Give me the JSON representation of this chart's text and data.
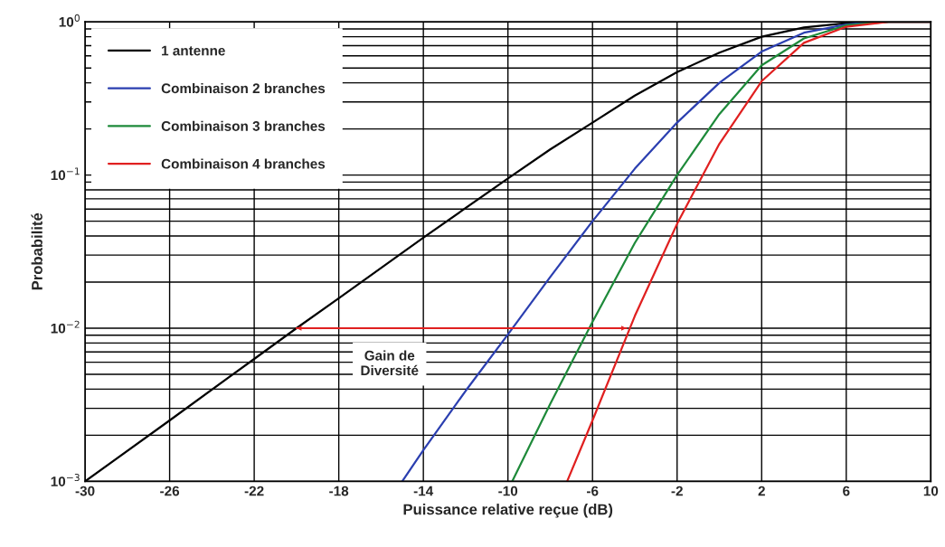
{
  "chart_data": {
    "type": "line",
    "xlabel": "Puissance relative reçue (dB)",
    "ylabel": "Probabilité",
    "log": "y",
    "grid": true,
    "legend": "top left",
    "line_style": "solid",
    "xlim": [
      -30,
      10
    ],
    "xticks": [
      -30,
      -26,
      -22,
      -18,
      -14,
      -10,
      -6,
      -2,
      2,
      6,
      10
    ],
    "ylim": [
      0.001,
      1
    ],
    "yticks": [
      {
        "value": 0.001,
        "label": "10$^{−3}$"
      },
      {
        "value": 0.002,
        "label": null
      },
      {
        "value": 0.003,
        "label": null
      },
      {
        "value": 0.004,
        "label": null
      },
      {
        "value": 0.005,
        "label": null
      },
      {
        "value": 0.006,
        "label": null
      },
      {
        "value": 0.007,
        "label": null
      },
      {
        "value": 0.008,
        "label": null
      },
      {
        "value": 0.009,
        "label": null
      },
      {
        "value": 0.01,
        "label": "10$^{−2}$"
      },
      {
        "value": 0.02,
        "label": null
      },
      {
        "value": 0.03,
        "label": null
      },
      {
        "value": 0.04,
        "label": null
      },
      {
        "value": 0.05,
        "label": null
      },
      {
        "value": 0.06,
        "label": null
      },
      {
        "value": 0.07,
        "label": null
      },
      {
        "value": 0.08,
        "label": null
      },
      {
        "value": 0.09,
        "label": null
      },
      {
        "value": 0.1,
        "label": "10$^{−1}$"
      },
      {
        "value": 0.2,
        "label": null
      },
      {
        "value": 0.3,
        "label": null
      },
      {
        "value": 0.4,
        "label": null
      },
      {
        "value": 0.5,
        "label": null
      },
      {
        "value": 0.6,
        "label": null
      },
      {
        "value": 0.7,
        "label": null
      },
      {
        "value": 0.8,
        "label": null
      },
      {
        "value": 0.9,
        "label": null
      },
      {
        "value": 1,
        "label": "10$^{0}$"
      }
    ],
    "series": [
      {
        "name": "1 antenne",
        "color": "#000000",
        "x": [
          -30,
          -26,
          -22,
          -20,
          -18,
          -14,
          -10,
          -8,
          -6,
          -4,
          -2,
          0,
          2,
          4,
          6,
          8,
          10
        ],
        "values": [
          0.001,
          0.0025,
          0.0063,
          0.01,
          0.0157,
          0.039,
          0.095,
          0.147,
          0.22,
          0.33,
          0.47,
          0.63,
          0.8,
          0.92,
          0.98,
          1,
          1
        ]
      },
      {
        "name": "Combinaison 2 branches",
        "color": "#2b3fb0",
        "x": [
          -15,
          -14,
          -12,
          -10,
          -8,
          -6,
          -4,
          -2,
          0,
          2,
          4,
          6,
          7,
          8,
          10
        ],
        "values": [
          0.001,
          0.0016,
          0.0039,
          0.0091,
          0.0216,
          0.05,
          0.11,
          0.22,
          0.4,
          0.64,
          0.85,
          0.96,
          0.99,
          1,
          1
        ]
      },
      {
        "name": "Combinaison 3 branches",
        "color": "#1e8a3a",
        "x": [
          -9.8,
          -8,
          -6,
          -4,
          -2,
          0,
          2,
          4,
          6,
          8,
          10
        ],
        "values": [
          0.001,
          0.0032,
          0.011,
          0.036,
          0.1,
          0.25,
          0.52,
          0.78,
          0.95,
          1,
          1
        ]
      },
      {
        "name": "Combinaison 4 branches",
        "color": "#e02020",
        "x": [
          -7.2,
          -6,
          -4,
          -2,
          0,
          2,
          4,
          6,
          8,
          10
        ],
        "values": [
          0.001,
          0.0025,
          0.012,
          0.048,
          0.16,
          0.41,
          0.73,
          0.93,
          1,
          1
        ]
      },
      {
        "color": "#e02020",
        "marker": "triangle",
        "x": [
          -20,
          -4.4
        ],
        "values": [
          0.01,
          0.01
        ]
      }
    ],
    "annotations": [
      "Gain de\nDiversité"
    ]
  }
}
